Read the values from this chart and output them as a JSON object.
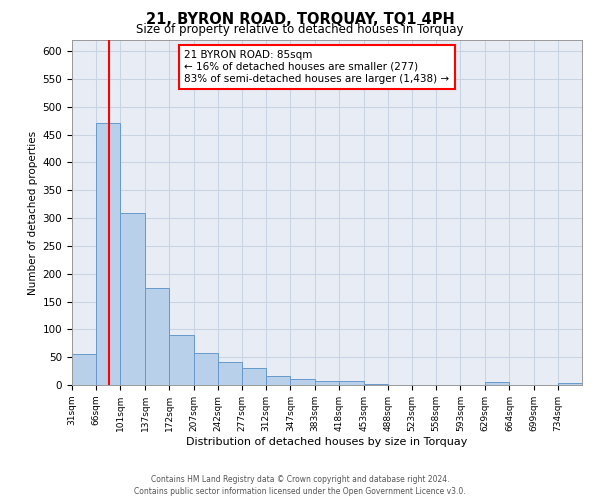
{
  "title": "21, BYRON ROAD, TORQUAY, TQ1 4PH",
  "subtitle": "Size of property relative to detached houses in Torquay",
  "xlabel": "Distribution of detached houses by size in Torquay",
  "ylabel": "Number of detached properties",
  "bin_labels": [
    "31sqm",
    "66sqm",
    "101sqm",
    "137sqm",
    "172sqm",
    "207sqm",
    "242sqm",
    "277sqm",
    "312sqm",
    "347sqm",
    "383sqm",
    "418sqm",
    "453sqm",
    "488sqm",
    "523sqm",
    "558sqm",
    "593sqm",
    "629sqm",
    "664sqm",
    "699sqm",
    "734sqm"
  ],
  "bin_edges": [
    31,
    66,
    101,
    137,
    172,
    207,
    242,
    277,
    312,
    347,
    383,
    418,
    453,
    488,
    523,
    558,
    593,
    629,
    664,
    699,
    734,
    769
  ],
  "bar_heights": [
    55,
    470,
    310,
    175,
    90,
    58,
    42,
    30,
    16,
    10,
    8,
    8,
    2,
    0,
    0,
    0,
    0,
    5,
    0,
    0,
    3
  ],
  "bar_color": "#b8d0ea",
  "bar_edge_color": "#6699cc",
  "grid_color": "#c8d4e4",
  "background_color": "#e8edf5",
  "property_line_x": 85,
  "property_line_color": "red",
  "annotation_text": "21 BYRON ROAD: 85sqm\n← 16% of detached houses are smaller (277)\n83% of semi-detached houses are larger (1,438) →",
  "annotation_box_color": "white",
  "annotation_box_edge": "red",
  "ylim": [
    0,
    620
  ],
  "yticks": [
    0,
    50,
    100,
    150,
    200,
    250,
    300,
    350,
    400,
    450,
    500,
    550,
    600
  ],
  "footer_line1": "Contains HM Land Registry data © Crown copyright and database right 2024.",
  "footer_line2": "Contains public sector information licensed under the Open Government Licence v3.0."
}
